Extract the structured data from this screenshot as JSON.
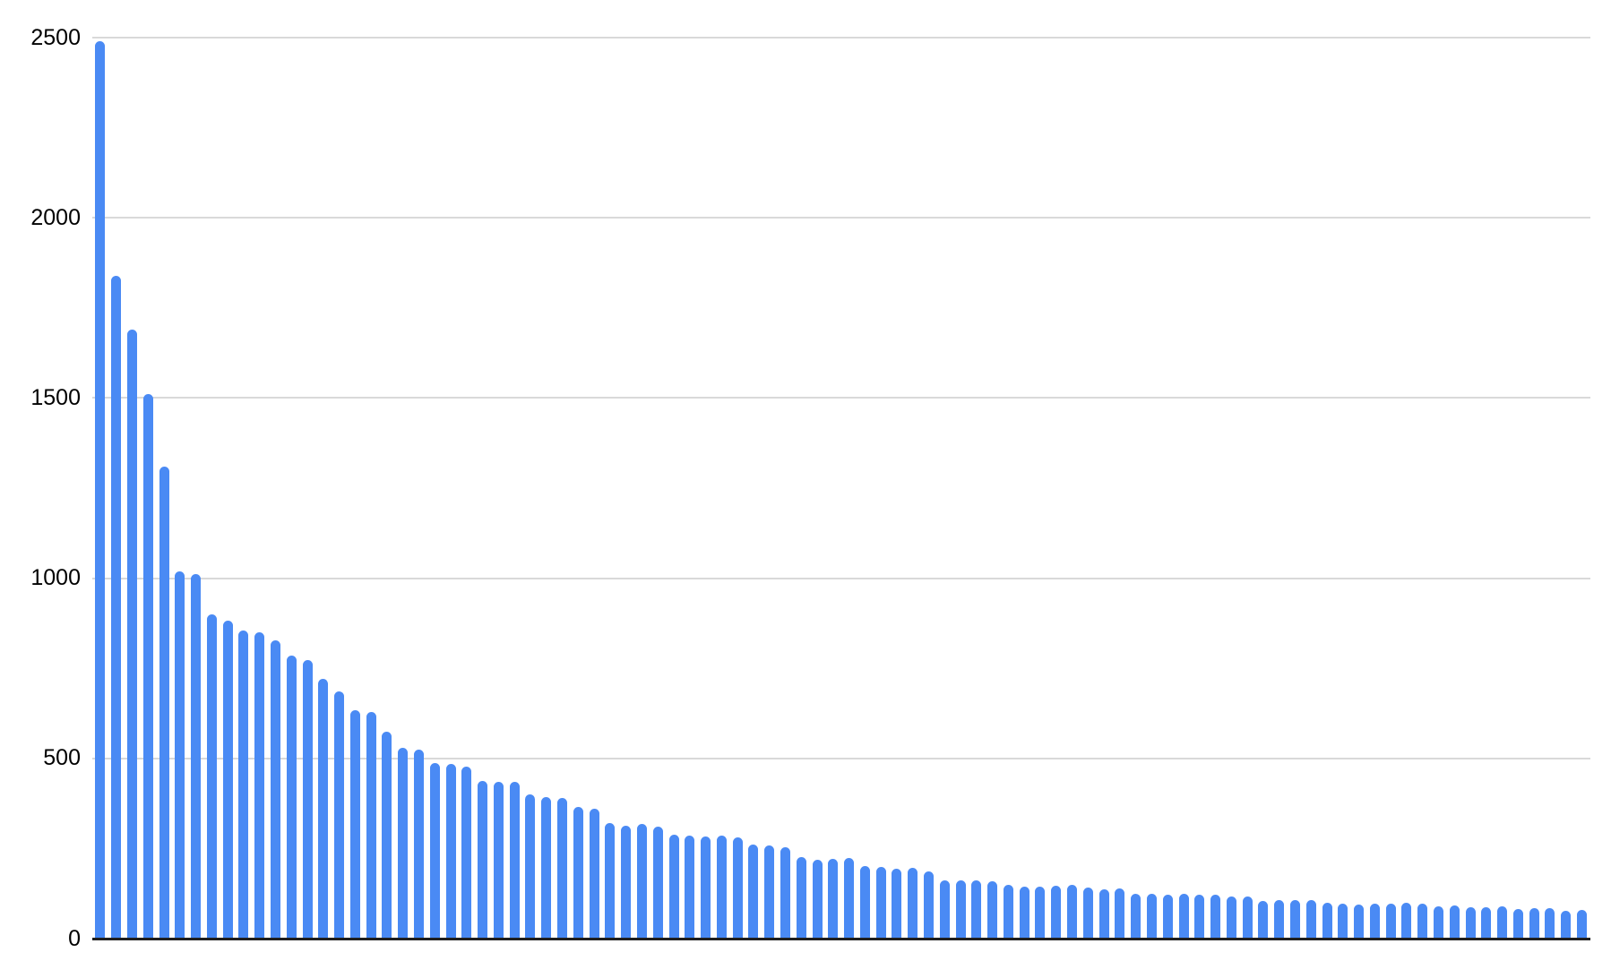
{
  "chart_data": {
    "type": "bar",
    "title": "",
    "xlabel": "",
    "ylabel": "",
    "ylim": [
      0,
      2500
    ],
    "y_ticks": [
      0,
      500,
      1000,
      1500,
      2000,
      2500
    ],
    "grid": true,
    "legend_position": "none",
    "x_tick_labels_visible": false,
    "values": [
      2490,
      1840,
      1690,
      1510,
      1310,
      1020,
      1012,
      900,
      882,
      855,
      850,
      828,
      785,
      773,
      721,
      686,
      634,
      629,
      574,
      530,
      525,
      487,
      485,
      477,
      437,
      436,
      434,
      400,
      393,
      390,
      365,
      360,
      320,
      313,
      317,
      311,
      288,
      286,
      283,
      285,
      281,
      261,
      258,
      253,
      226,
      219,
      221,
      223,
      201,
      199,
      194,
      196,
      186,
      162,
      162,
      161,
      159,
      149,
      144,
      143,
      146,
      148,
      142,
      137,
      139,
      124,
      124,
      122,
      124,
      122,
      123,
      117,
      117,
      104,
      106,
      108,
      106,
      99,
      97,
      94,
      98,
      97,
      99,
      98,
      89,
      91,
      87,
      87,
      89,
      81,
      85,
      84,
      78,
      80
    ]
  },
  "colors": {
    "background": "#ffffff",
    "bar": "#4a8af4",
    "gridline": "#d9d9d9",
    "axis_line": "#1f1f1f",
    "tick_label": "#000000"
  }
}
